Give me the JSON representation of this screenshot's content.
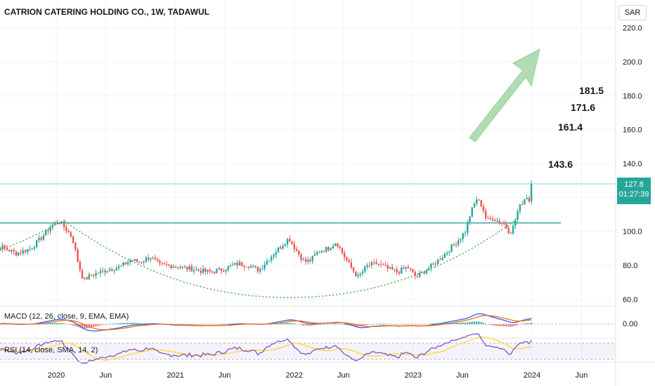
{
  "header": {
    "title": "CATRION CATERING HOLDING CO., 1W, TADAWUL",
    "currency": "SAR"
  },
  "price_badge": {
    "price": "127.8",
    "countdown": "01:27:39"
  },
  "indicators": {
    "macd_label": "MACD (12, 26, close, 9, EMA, EMA)",
    "macd_zero": "0.00",
    "rsi_label": "RSI (14, close, SMA, 14, 2)"
  },
  "targets": [
    "181.5",
    "171.6",
    "161.4",
    "143.6"
  ],
  "colors": {
    "up": "#26a69a",
    "down": "#ef5350",
    "cup": "#4caf50",
    "arrow": "#a5d6a7",
    "macd": "#2962ff",
    "signal": "#ff6d00",
    "rsi": "#7e57c2",
    "rsi_ma": "#fdd835",
    "grid": "#f0f3fa"
  },
  "chart_data": {
    "type": "candlestick",
    "title": "CATRION CATERING HOLDING CO., 1W, TADAWUL",
    "y_axis_ticks": [
      60,
      80,
      100,
      120,
      140,
      160,
      180,
      200,
      220
    ],
    "y_axis_labels": [
      "60.0",
      "80.0",
      "100.0",
      "120.0",
      "140.0",
      "160.0",
      "180.0",
      "200.0",
      "220.0"
    ],
    "ylim": [
      56,
      224
    ],
    "x_axis_labels": [
      "2020",
      "Jun",
      "2021",
      "Jun",
      "2022",
      "Jun",
      "2023",
      "Jun",
      "2024",
      "Jun"
    ],
    "x_axis_dates": [
      "2020-01-01",
      "2020-06-01",
      "2021-01-01",
      "2021-06-01",
      "2022-01-01",
      "2022-06-01",
      "2023-01-01",
      "2023-06-01",
      "2024-01-01",
      "2024-06-01"
    ],
    "last_price": 127.8,
    "horizontal_levels": [
      {
        "value": 105,
        "role": "resistance"
      },
      {
        "value": 128,
        "role": "current price"
      }
    ],
    "target_levels": [
      181.5,
      171.6,
      161.4,
      143.6
    ],
    "price_path": [
      [
        "2019-06-01",
        88
      ],
      [
        "2019-07-15",
        91
      ],
      [
        "2019-09-01",
        87
      ],
      [
        "2019-10-15",
        90
      ],
      [
        "2019-11-15",
        96
      ],
      [
        "2019-12-15",
        103
      ],
      [
        "2020-01-10",
        106
      ],
      [
        "2020-02-01",
        101
      ],
      [
        "2020-02-20",
        96
      ],
      [
        "2020-03-10",
        80
      ],
      [
        "2020-03-25",
        71
      ],
      [
        "2020-04-15",
        74
      ],
      [
        "2020-05-15",
        76
      ],
      [
        "2020-06-15",
        78
      ],
      [
        "2020-07-15",
        79
      ],
      [
        "2020-08-15",
        83
      ],
      [
        "2020-09-15",
        82
      ],
      [
        "2020-10-15",
        85
      ],
      [
        "2020-11-15",
        80
      ],
      [
        "2020-12-15",
        80
      ],
      [
        "2021-01-15",
        79
      ],
      [
        "2021-02-15",
        78
      ],
      [
        "2021-03-15",
        77
      ],
      [
        "2021-04-15",
        76
      ],
      [
        "2021-05-15",
        77
      ],
      [
        "2021-06-15",
        79
      ],
      [
        "2021-07-15",
        81
      ],
      [
        "2021-08-15",
        80
      ],
      [
        "2021-09-15",
        77
      ],
      [
        "2021-10-15",
        84
      ],
      [
        "2021-11-15",
        90
      ],
      [
        "2021-12-15",
        96
      ],
      [
        "2022-01-10",
        88
      ],
      [
        "2022-02-01",
        82
      ],
      [
        "2022-02-20",
        83
      ],
      [
        "2022-03-15",
        88
      ],
      [
        "2022-04-15",
        90
      ],
      [
        "2022-05-10",
        94
      ],
      [
        "2022-06-01",
        86
      ],
      [
        "2022-06-20",
        80
      ],
      [
        "2022-07-15",
        73
      ],
      [
        "2022-08-15",
        80
      ],
      [
        "2022-09-15",
        81
      ],
      [
        "2022-10-15",
        78
      ],
      [
        "2022-11-15",
        76
      ],
      [
        "2022-12-15",
        79
      ],
      [
        "2023-01-10",
        73
      ],
      [
        "2023-02-01",
        76
      ],
      [
        "2023-03-01",
        80
      ],
      [
        "2023-03-25",
        84
      ],
      [
        "2023-04-15",
        88
      ],
      [
        "2023-05-05",
        92
      ],
      [
        "2023-05-25",
        96
      ],
      [
        "2023-06-10",
        100
      ],
      [
        "2023-06-25",
        110
      ],
      [
        "2023-07-01",
        113
      ],
      [
        "2023-07-15",
        119
      ],
      [
        "2023-08-01",
        115
      ],
      [
        "2023-08-15",
        106
      ],
      [
        "2023-09-01",
        108
      ],
      [
        "2023-09-20",
        106
      ],
      [
        "2023-10-10",
        104
      ],
      [
        "2023-10-25",
        99
      ],
      [
        "2023-11-05",
        103
      ],
      [
        "2023-11-20",
        113
      ],
      [
        "2023-12-05",
        118
      ],
      [
        "2023-12-15",
        121
      ],
      [
        "2023-12-28",
        116
      ],
      [
        "2024-01-05",
        127.8
      ]
    ]
  }
}
